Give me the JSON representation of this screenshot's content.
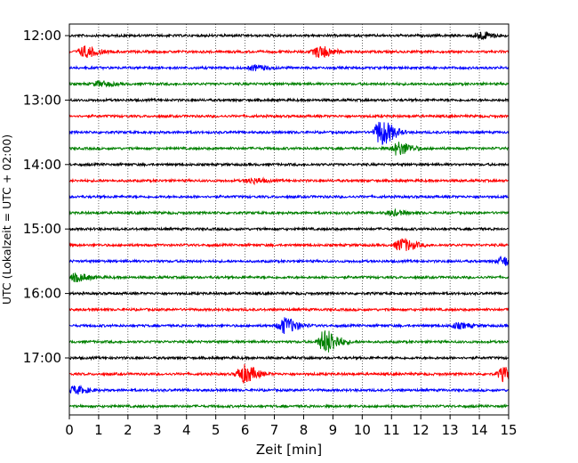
{
  "chart_data": {
    "type": "line",
    "title": "",
    "xlabel": "Zeit  [min]",
    "ylabel": "UTC (Lokalzeit = UTC + 02:00)",
    "xlim": [
      0,
      15
    ],
    "x_ticks": [
      "0",
      "1",
      "2",
      "3",
      "4",
      "5",
      "6",
      "7",
      "8",
      "9",
      "10",
      "11",
      "12",
      "13",
      "14",
      "15"
    ],
    "y_ticks": [
      "12:00",
      "13:00",
      "14:00",
      "15:00",
      "16:00",
      "17:00"
    ],
    "grid": "vertical dotted lines at each minute",
    "trace_interval_min": 15,
    "color_cycle": [
      "#000000",
      "#ff0000",
      "#0000ff",
      "#008000"
    ],
    "series": [
      {
        "start": "12:00",
        "color": "#000000",
        "events": [
          {
            "x": 14.0,
            "amp": 0.45
          }
        ]
      },
      {
        "start": "12:15",
        "color": "#ff0000",
        "events": [
          {
            "x": 0.5,
            "amp": 0.65
          },
          {
            "x": 8.5,
            "amp": 0.7
          }
        ]
      },
      {
        "start": "12:30",
        "color": "#0000ff",
        "events": [
          {
            "x": 6.3,
            "amp": 0.3
          }
        ]
      },
      {
        "start": "12:45",
        "color": "#008000",
        "events": [
          {
            "x": 1.0,
            "amp": 0.3
          }
        ]
      },
      {
        "start": "13:00",
        "color": "#000000",
        "events": []
      },
      {
        "start": "13:15",
        "color": "#ff0000",
        "events": []
      },
      {
        "start": "13:30",
        "color": "#0000ff",
        "events": [
          {
            "x": 10.6,
            "amp": 1.55
          }
        ]
      },
      {
        "start": "13:45",
        "color": "#008000",
        "events": [
          {
            "x": 11.2,
            "amp": 0.8
          }
        ]
      },
      {
        "start": "14:00",
        "color": "#000000",
        "events": []
      },
      {
        "start": "14:15",
        "color": "#ff0000",
        "events": [
          {
            "x": 6.2,
            "amp": 0.3
          }
        ]
      },
      {
        "start": "14:30",
        "color": "#0000ff",
        "events": []
      },
      {
        "start": "14:45",
        "color": "#008000",
        "events": [
          {
            "x": 11.0,
            "amp": 0.3
          }
        ]
      },
      {
        "start": "15:00",
        "color": "#000000",
        "events": []
      },
      {
        "start": "15:15",
        "color": "#ff0000",
        "events": [
          {
            "x": 11.3,
            "amp": 0.8
          }
        ]
      },
      {
        "start": "15:30",
        "color": "#0000ff",
        "events": [
          {
            "x": 14.8,
            "amp": 0.55
          }
        ]
      },
      {
        "start": "15:45",
        "color": "#008000",
        "events": [
          {
            "x": 0.2,
            "amp": 0.45
          }
        ]
      },
      {
        "start": "16:00",
        "color": "#000000",
        "events": []
      },
      {
        "start": "16:15",
        "color": "#ff0000",
        "events": []
      },
      {
        "start": "16:30",
        "color": "#0000ff",
        "events": [
          {
            "x": 7.3,
            "amp": 0.95
          },
          {
            "x": 13.2,
            "amp": 0.3
          }
        ]
      },
      {
        "start": "16:45",
        "color": "#008000",
        "events": [
          {
            "x": 8.7,
            "amp": 1.45
          }
        ]
      },
      {
        "start": "17:00",
        "color": "#000000",
        "events": []
      },
      {
        "start": "17:15",
        "color": "#ff0000",
        "events": [
          {
            "x": 5.9,
            "amp": 1.1
          },
          {
            "x": 14.8,
            "amp": 0.8
          }
        ]
      },
      {
        "start": "17:30",
        "color": "#0000ff",
        "events": [
          {
            "x": 0.15,
            "amp": 0.45
          }
        ]
      },
      {
        "start": "17:45",
        "color": "#008000",
        "events": []
      }
    ]
  }
}
